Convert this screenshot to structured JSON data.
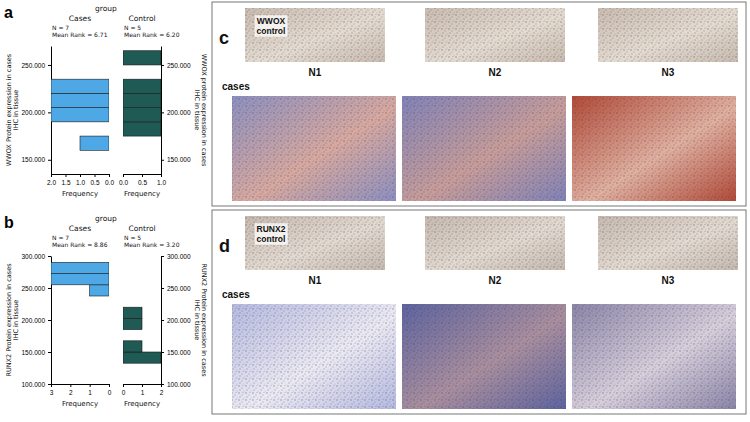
{
  "chart_data": [
    {
      "type": "histogram",
      "label": "a",
      "title": "group",
      "orientation": "horizontal",
      "ylabel": "WWOX Protein expression in cases IHC in tissue",
      "y2label": "WWOX protein expression in cases IHC in tissue",
      "xlabel": "Frequency",
      "bins": [
        160000,
        175000,
        190000,
        205000,
        220000,
        235000,
        250000,
        265000
      ],
      "ylim": [
        135000,
        270000
      ],
      "yticks": [
        {
          "value": 150000,
          "label": "150.000"
        },
        {
          "value": 200000,
          "label": "200.000"
        },
        {
          "value": 250000,
          "label": "250.000"
        }
      ],
      "series": [
        {
          "name": "Cases",
          "color": "#4ea8e6",
          "values": [
            1,
            0,
            2,
            2,
            2,
            0,
            0
          ],
          "annotations": [
            "N = 7",
            "Mean Rank = 6.71"
          ],
          "xlim": [
            0,
            2
          ],
          "xticks": [
            {
              "value": 2,
              "label": "2.0"
            },
            1.5,
            {
              "value": 1,
              "label": "1.0"
            },
            0.5,
            {
              "value": 0,
              "label": "0.0"
            }
          ]
        },
        {
          "name": "Control",
          "color": "#1f5a55",
          "values": [
            0,
            1,
            1,
            1,
            1,
            0,
            1
          ],
          "annotations": [
            "N = 5",
            "Mean Rank = 6.20"
          ],
          "xlim": [
            0,
            1
          ],
          "xticks": [
            {
              "value": 0,
              "label": "0.0"
            },
            0.5,
            {
              "value": 1,
              "label": "1.0"
            }
          ]
        }
      ]
    },
    {
      "type": "histogram",
      "label": "b",
      "title": "group",
      "orientation": "horizontal",
      "ylabel": "RUNX2 Protein expression in cases IHC in tissue",
      "y2label": "RUNX2 Protein expression in cases IHC in tissue",
      "xlabel": "Frequency",
      "bins": [
        132500,
        150000,
        167500,
        185000,
        202500,
        220000,
        237500,
        255000,
        272500,
        290000
      ],
      "ylim": [
        100000,
        300000
      ],
      "yticks": [
        {
          "value": 100000,
          "label": "100.000"
        },
        {
          "value": 150000,
          "label": "150.000"
        },
        {
          "value": 200000,
          "label": "200.000"
        },
        {
          "value": 250000,
          "label": "250.000"
        },
        {
          "value": 300000,
          "label": "300.000"
        }
      ],
      "series": [
        {
          "name": "Cases",
          "color": "#4ea8e6",
          "values": [
            0,
            0,
            0,
            0,
            0,
            0,
            1,
            3,
            3
          ],
          "annotations": [
            "N = 7",
            "Mean Rank = 8.86"
          ],
          "xlim": [
            0,
            3
          ],
          "xticks": [
            3,
            2,
            1,
            0
          ]
        },
        {
          "name": "Control",
          "color": "#1f5a55",
          "values": [
            2,
            1,
            0,
            1,
            1,
            0,
            0,
            0,
            0
          ],
          "annotations": [
            "N = 5",
            "Mean Rank = 3.20"
          ],
          "xlim": [
            0,
            2
          ],
          "xticks": [
            0,
            1,
            2
          ]
        }
      ]
    }
  ],
  "image_panels": [
    {
      "label": "c",
      "control_label": "WWOX control",
      "columns": [
        "N1",
        "N2",
        "N3"
      ],
      "cases_label": "cases"
    },
    {
      "label": "d",
      "control_label": "RUNX2 control",
      "columns": [
        "N1",
        "N2",
        "N3"
      ],
      "cases_label": "cases"
    }
  ]
}
